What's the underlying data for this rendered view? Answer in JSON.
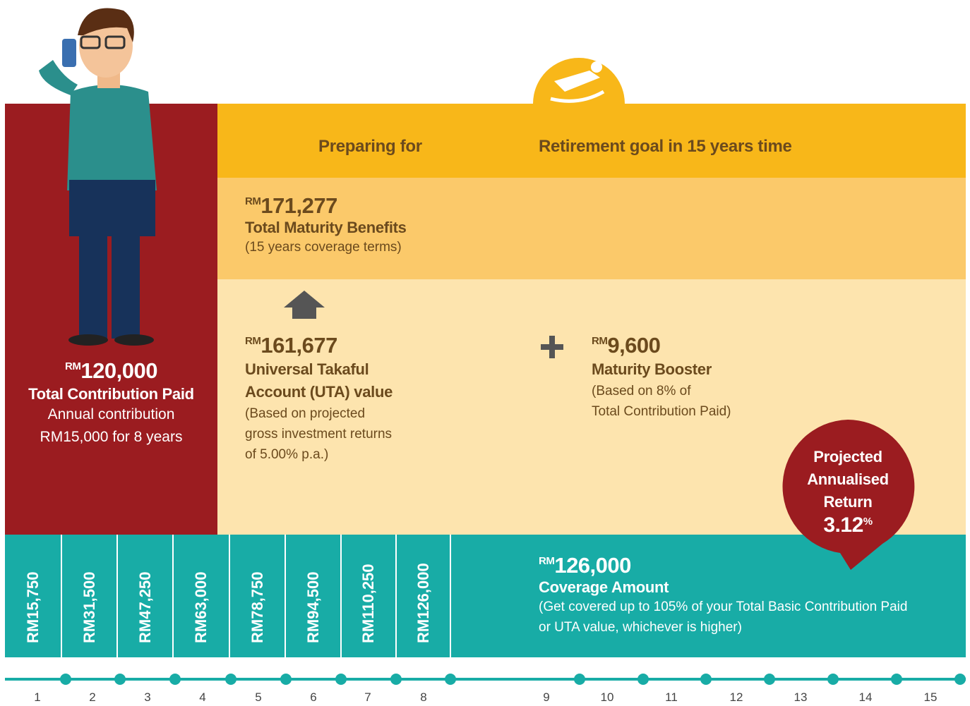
{
  "contribution": {
    "currency": "RM",
    "amount": "120,000",
    "label": "Total Contribution Paid",
    "note": [
      "Annual contribution",
      "RM15,000 for 8 years"
    ]
  },
  "header": {
    "left": "Preparing for",
    "right": "Retirement goal in 15 years time"
  },
  "maturity": {
    "currency": "RM",
    "amount": "171,277",
    "label": "Total Maturity Benefits",
    "note": "(15 years coverage terms)"
  },
  "uta": {
    "currency": "RM",
    "amount": "161,677",
    "label": [
      "Universal Takaful",
      "Account (UTA) value"
    ],
    "note": [
      "(Based on projected",
      "gross investment returns",
      "of 5.00% p.a.)"
    ]
  },
  "booster": {
    "currency": "RM",
    "amount": "9,600",
    "label": "Maturity Booster",
    "note": [
      "(Based on 8% of",
      "Total Contribution Paid)"
    ]
  },
  "annual_return": {
    "label": [
      "Projected",
      "Annualised",
      "Return"
    ],
    "value": "3.12",
    "unit": "%"
  },
  "coverage": {
    "yearly": [
      "RM15,750",
      "RM31,500",
      "RM47,250",
      "RM63,000",
      "RM78,750",
      "RM94,500",
      "RM110,250",
      "RM126,000"
    ],
    "currency": "RM",
    "amount": "126,000",
    "label": "Coverage Amount",
    "note": [
      "(Get covered up to 105% of your Total Basic Contribution Paid",
      "or UTA value, whichever is higher)"
    ]
  },
  "timeline": [
    "1",
    "2",
    "3",
    "4",
    "5",
    "6",
    "7",
    "8",
    "9",
    "10",
    "11",
    "12",
    "13",
    "14",
    "15"
  ]
}
